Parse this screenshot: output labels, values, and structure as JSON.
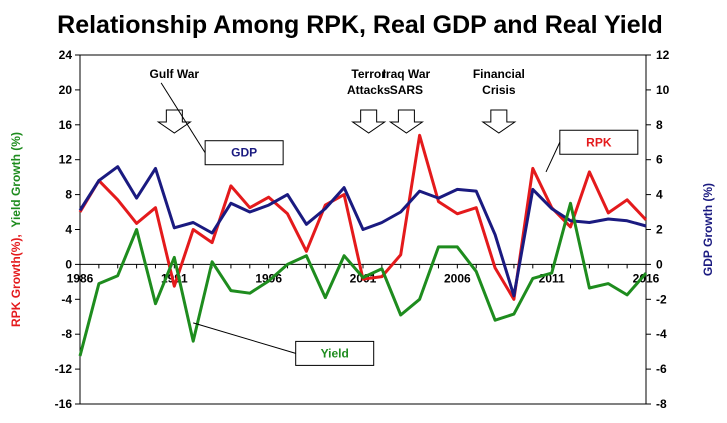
{
  "chart_data": {
    "type": "line",
    "title": "Relationship Among RPK, Real GDP and Real Yield",
    "ylabel_left": {
      "parts": [
        {
          "text": "RPK Growth(%),",
          "color": "#e41a1c"
        },
        {
          "text": "Yield Growth (%)",
          "color": "#1e8c1e"
        }
      ]
    },
    "ylabel_right": "GDP Growth (%)",
    "x_tick_labels": [
      "1986",
      "1991",
      "1996",
      "2001",
      "2006",
      "2011",
      "2016"
    ],
    "x_tick_values": [
      1986,
      1991,
      1996,
      2001,
      2006,
      2011,
      2016
    ],
    "xlim": [
      1986,
      2016
    ],
    "ylim_left": [
      -16,
      24
    ],
    "y_ticks_left": [
      "24",
      "20",
      "16",
      "12",
      "8",
      "4",
      "0",
      "-4",
      "-8",
      "-12",
      "-16"
    ],
    "ylim_right": [
      -8,
      12
    ],
    "y_ticks_right": [
      "12",
      "10",
      "8",
      "6",
      "4",
      "2",
      "0",
      "-2",
      "-4",
      "-6",
      "-8"
    ],
    "grid": false,
    "series": [
      {
        "name": "RPK",
        "axis": "left",
        "color": "#e41a1c",
        "x": [
          1986,
          1987,
          1988,
          1989,
          1990,
          1991,
          1992,
          1993,
          1994,
          1995,
          1996,
          1997,
          1998,
          1999,
          2000,
          2001,
          2002,
          2003,
          2004,
          2005,
          2006,
          2007,
          2008,
          2009,
          2010,
          2011,
          2012,
          2013,
          2014,
          2015,
          2016
        ],
        "values": [
          6.0,
          9.6,
          7.4,
          4.7,
          6.5,
          -2.5,
          4.0,
          2.5,
          9.0,
          6.5,
          7.7,
          5.8,
          1.5,
          6.8,
          8.0,
          -1.7,
          -1.4,
          1.1,
          14.8,
          7.2,
          5.8,
          6.5,
          -0.4,
          -4.0,
          11.0,
          6.5,
          4.3,
          10.6,
          5.9,
          7.4,
          5.1
        ]
      },
      {
        "name": "GDP",
        "axis": "right",
        "color": "#1a1a80",
        "x": [
          1986,
          1987,
          1988,
          1989,
          1990,
          1991,
          1992,
          1993,
          1994,
          1995,
          1996,
          1997,
          1998,
          1999,
          2000,
          2001,
          2002,
          2003,
          2004,
          2005,
          2006,
          2007,
          2008,
          2009,
          2010,
          2011,
          2012,
          2013,
          2014,
          2015,
          2016
        ],
        "values": [
          3.1,
          4.8,
          5.6,
          3.8,
          5.5,
          2.1,
          2.4,
          1.8,
          3.5,
          3.0,
          3.4,
          4.0,
          2.3,
          3.2,
          4.4,
          2.0,
          2.4,
          3.0,
          4.2,
          3.8,
          4.3,
          4.2,
          1.7,
          -1.8,
          4.3,
          3.2,
          2.5,
          2.4,
          2.6,
          2.5,
          2.2
        ]
      },
      {
        "name": "Yield",
        "axis": "left",
        "color": "#1e8c1e",
        "x": [
          1986,
          1987,
          1988,
          1989,
          1990,
          1991,
          1992,
          1993,
          1994,
          1995,
          1996,
          1997,
          1998,
          1999,
          2000,
          2001,
          2002,
          2003,
          2004,
          2005,
          2006,
          2007,
          2008,
          2009,
          2010,
          2011,
          2012,
          2013,
          2014,
          2015,
          2016
        ],
        "values": [
          -10.5,
          -2.2,
          -1.3,
          4.0,
          -4.5,
          0.8,
          -8.8,
          0.3,
          -3.0,
          -3.3,
          -1.9,
          0.0,
          1.0,
          -3.8,
          1.0,
          -1.5,
          -0.5,
          -5.8,
          -4.0,
          2.0,
          2.0,
          -0.8,
          -6.4,
          -5.7,
          -1.6,
          -1.0,
          7.0,
          -2.7,
          -2.2,
          -3.5,
          -1.0
        ]
      }
    ],
    "annotations": [
      {
        "lines": [
          "Gulf War"
        ],
        "year": 1991.0,
        "arrow": true
      },
      {
        "lines": [
          "Terror",
          "Attacks"
        ],
        "year": 2001.3,
        "arrow": true
      },
      {
        "lines": [
          "Iraq  War",
          "SARS"
        ],
        "year": 2003.3,
        "arrow": true
      },
      {
        "lines": [
          "Financial",
          "Crisis"
        ],
        "year": 2008.2,
        "arrow": true
      }
    ],
    "series_labels": [
      {
        "series": "GDP",
        "text": "GDP",
        "text_color": "#1a1a80",
        "box_year": 1994.7,
        "box_value": 12.8,
        "pointer_year": 1990.3,
        "pointer_value": 10.4
      },
      {
        "series": "RPK",
        "text": "RPK",
        "text_color": "#e41a1c",
        "box_year": 2013.5,
        "box_value": 14.0,
        "pointer_year": 2010.7,
        "pointer_value": 10.6
      },
      {
        "series": "Yield",
        "text": "Yield",
        "text_color": "#1e8c1e",
        "box_year": 1999.5,
        "box_value": -10.2,
        "pointer_year": 1992.0,
        "pointer_value": -6.7
      }
    ]
  }
}
